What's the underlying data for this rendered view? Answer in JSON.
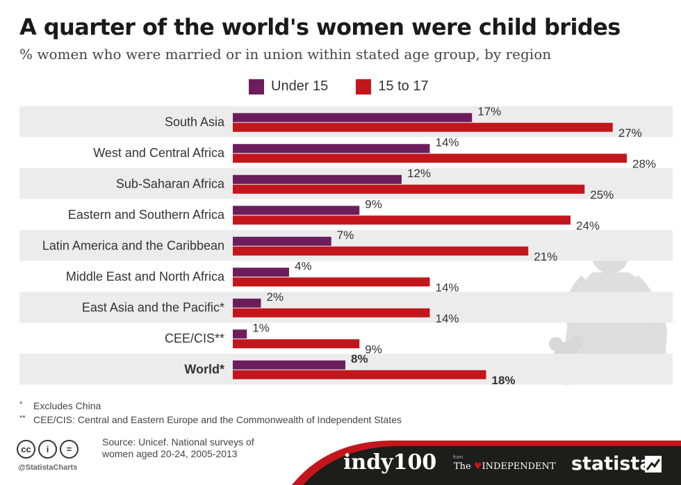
{
  "header": {
    "title": "A quarter of the world's women were child brides",
    "subtitle": "% women who were married or in union within stated age group, by region"
  },
  "legend": {
    "under15": "Under 15",
    "age15to17": "15 to 17"
  },
  "colors": {
    "under15": "#6c1e5c",
    "age15to17": "#c3161c",
    "row_band": "#ececec",
    "footer_band": "#1d1d1b",
    "footer_accent": "#c3161c"
  },
  "chart_data": {
    "type": "bar",
    "orientation": "horizontal",
    "categories": [
      "South Asia",
      "West and Central Africa",
      "Sub-Saharan Africa",
      "Eastern and Southern Africa",
      "Latin America and the Caribbean",
      "Middle East and North Africa",
      "East Asia and the Pacific*",
      "CEE/CIS**",
      "World*"
    ],
    "series": [
      {
        "name": "Under 15",
        "values": [
          17,
          14,
          12,
          9,
          7,
          4,
          2,
          1,
          8
        ]
      },
      {
        "name": "15 to 17",
        "values": [
          27,
          28,
          25,
          24,
          21,
          14,
          14,
          9,
          18
        ]
      }
    ],
    "value_suffix": "%",
    "xlim": [
      0,
      28
    ],
    "legend_position": "top",
    "grid": false,
    "highlight_category": "World*"
  },
  "footnotes": [
    {
      "mark": "*",
      "text": "Excludes China"
    },
    {
      "mark": "**",
      "text": "CEE/CIS: Central and Eastern Europe and the Commonwealth of Independent States"
    }
  ],
  "source": "Source: Unicef. National surveys of women aged 20-24, 2005-2013",
  "handle": "@StatistaCharts",
  "license_icons": [
    "cc-icon",
    "by-icon",
    "nd-icon"
  ],
  "license_glyphs": [
    "cc",
    "i",
    "="
  ],
  "brands": {
    "indy_word": "indy",
    "indy_num": "100",
    "from": "from",
    "independent_the": "The",
    "independent_name": "INDEPENDENT",
    "statista": "statista"
  }
}
